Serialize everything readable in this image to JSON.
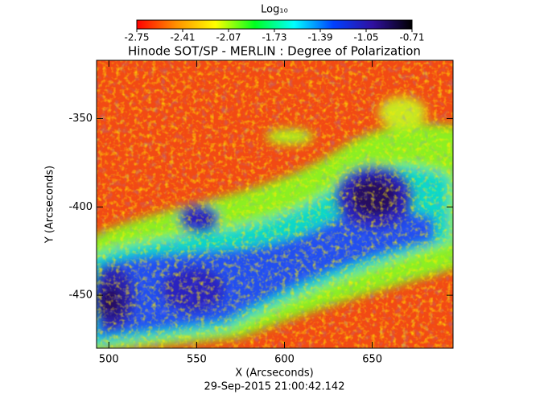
{
  "chart_data": {
    "type": "image",
    "title": "Hinode SOT/SP - MERLIN : Degree of Polarization",
    "x_label": "X (Arcseconds)",
    "y_label": "Y (Arcseconds)",
    "timestamp": "29-Sep-2015 21:00:42.142",
    "xlim": [
      493,
      696
    ],
    "xticks": [
      500,
      550,
      600,
      650
    ],
    "ylim": [
      -480,
      -317
    ],
    "yticks": [
      -350,
      -400,
      -450
    ],
    "colorbar": {
      "title": "Log₁₀",
      "lim": [
        -2.75,
        -0.71
      ],
      "ticks": [
        -2.75,
        -2.41,
        -2.07,
        -1.73,
        -1.39,
        -1.05,
        -0.71
      ],
      "colormap": [
        "#ff0000",
        "#ff9000",
        "#ffff00",
        "#00ff20",
        "#00ffff",
        "#0040ff",
        "#3010a0",
        "#000000"
      ]
    }
  }
}
